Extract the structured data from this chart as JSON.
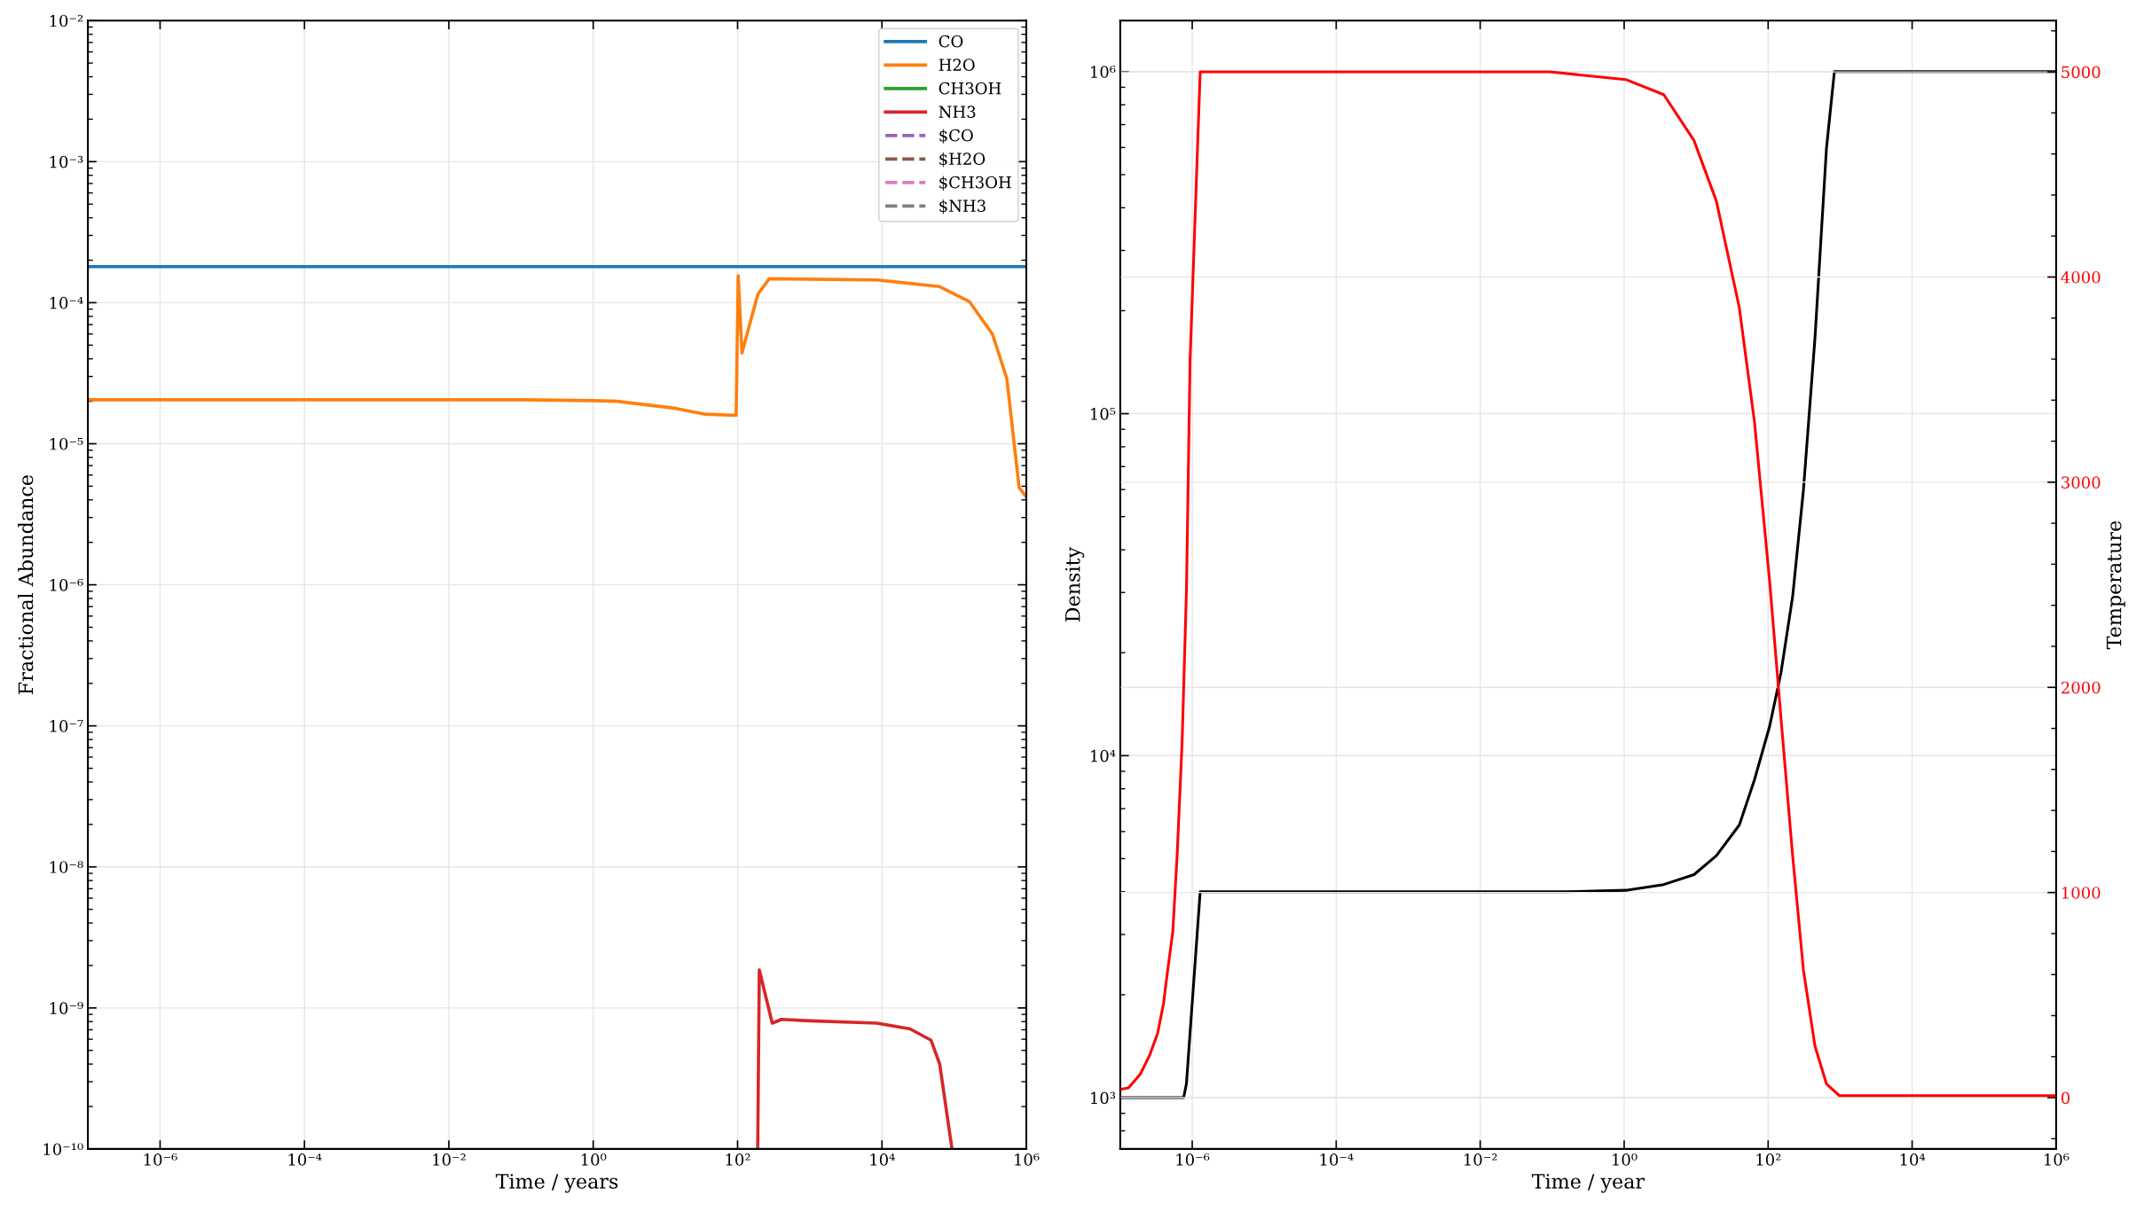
{
  "chart_data": [
    {
      "type": "line",
      "xlabel": "Time / years",
      "ylabel": "Fractional Abundance",
      "log": "xy",
      "grid": true,
      "legend": "top right",
      "line_style": "solid",
      "marker": "none",
      "xlim": [
        1e-07,
        1000000
      ],
      "ylim": [
        1e-10,
        0.01
      ],
      "xticks": [
        {
          "value": 1e-06,
          "label": "10⁻⁶"
        },
        {
          "value": 0.0001,
          "label": "10⁻⁴"
        },
        {
          "value": 0.01,
          "label": "10⁻²"
        },
        {
          "value": 1,
          "label": "10⁰"
        },
        {
          "value": 100,
          "label": "10²"
        },
        {
          "value": 10000,
          "label": "10⁴"
        },
        {
          "value": 1000000,
          "label": "10⁶"
        }
      ],
      "yticks": [
        {
          "value": 1e-10,
          "label": "10⁻¹⁰"
        },
        {
          "value": 1e-09,
          "label": "10⁻⁹"
        },
        {
          "value": 1e-08,
          "label": "10⁻⁸"
        },
        {
          "value": 1e-07,
          "label": "10⁻⁷"
        },
        {
          "value": 1e-06,
          "label": "10⁻⁶"
        },
        {
          "value": 1e-05,
          "label": "10⁻⁵"
        },
        {
          "value": 0.0001,
          "label": "10⁻⁴"
        },
        {
          "value": 0.001,
          "label": "10⁻³"
        },
        {
          "value": 0.01,
          "label": "10⁻²"
        }
      ],
      "series": [
        {
          "name": "CO",
          "color": "#1f77b4",
          "x": [
            1e-07,
            1000000
          ],
          "values": [
            0.00018,
            0.00018
          ]
        },
        {
          "name": "H2O",
          "color": "#ff7f0e",
          "x": [
            1e-07,
            0.1,
            1,
            2.14,
            14.1,
            35.5,
            95.5,
            102,
            115,
            191,
            275,
            8510,
            63100,
            162000,
            339000,
            537000,
            794000,
            1000000
          ],
          "values": [
            2.05e-05,
            2.05e-05,
            2.02e-05,
            2e-05,
            1.78e-05,
            1.62e-05,
            1.59e-05,
            0.000155,
            4.4e-05,
            0.000115,
            0.000148,
            0.000145,
            0.00013,
            0.000102,
            6e-05,
            2.9e-05,
            4.9e-06,
            4.2e-06
          ]
        },
        {
          "name": "CH3OH",
          "color": "#2ca02c"
        },
        {
          "name": "NH3",
          "color": "#d62728",
          "x": [
            190,
            200,
            302,
            407,
            1020,
            8510,
            24500,
            47900,
            63100,
            93300
          ],
          "values": [
            1e-10,
            1.86e-09,
            7.8e-10,
            8.3e-10,
            8.1e-10,
            7.8e-10,
            7.1e-10,
            5.9e-10,
            4e-10,
            1e-10
          ]
        },
        {
          "name": "$CO",
          "color": "#9467bd",
          "line_style": "dashed"
        },
        {
          "name": "$H2O",
          "color": "#8c564b",
          "line_style": "dashed"
        },
        {
          "name": "$CH3OH",
          "color": "#e377c2",
          "line_style": "dashed"
        },
        {
          "name": "$NH3",
          "color": "#7f7f7f",
          "line_style": "dashed"
        }
      ]
    },
    {
      "type": "line",
      "xlabel": "Time / year",
      "ylabel": "Density",
      "y2label": "Temperature",
      "log": "xy",
      "grid": true,
      "legend": false,
      "line_style": "solid",
      "marker": "none",
      "xlim": [
        1e-07,
        1000000
      ],
      "ylim": [
        708,
        1410000
      ],
      "y2lim": [
        -250,
        5250
      ],
      "xticks": [
        {
          "value": 1e-06,
          "label": "10⁻⁶"
        },
        {
          "value": 0.0001,
          "label": "10⁻⁴"
        },
        {
          "value": 0.01,
          "label": "10⁻²"
        },
        {
          "value": 1,
          "label": "10⁰"
        },
        {
          "value": 100,
          "label": "10²"
        },
        {
          "value": 10000,
          "label": "10⁴"
        },
        {
          "value": 1000000,
          "label": "10⁶"
        }
      ],
      "yticks": [
        {
          "value": 1000,
          "label": "10³"
        },
        {
          "value": 10000,
          "label": "10⁴"
        },
        {
          "value": 100000,
          "label": "10⁵"
        },
        {
          "value": 1000000,
          "label": "10⁶"
        }
      ],
      "y2ticks": [
        0,
        1000,
        2000,
        3000,
        4000,
        5000
      ],
      "series": [
        {
          "color": "#000000",
          "axis": "y",
          "x": [
            1e-07,
            7.6e-07,
            8.3e-07,
            1.29e-06,
            1.5e-06,
            0.15,
            1.05,
            3.55,
            9.33,
            19.1,
            39.8,
            64.6,
            105,
            151,
            219,
            309,
            447,
            646,
            832,
            1000000
          ],
          "values": [
            1000,
            1000,
            1097,
            4000,
            4000,
            4000,
            4040,
            4200,
            4490,
            5100,
            6270,
            8500,
            12200,
            17500,
            29200,
            59700,
            166000,
            597000,
            1000000,
            1000000
          ]
        },
        {
          "color": "#ff0000",
          "axis": "y2",
          "x": [
            1e-07,
            1.3e-07,
            1.9e-07,
            2.57e-07,
            3.31e-07,
            3.98e-07,
            4.57e-07,
            5.37e-07,
            6.17e-07,
            7.24e-07,
            8.32e-07,
            9.33e-07,
            1.29e-06,
            0.093,
            1.05,
            3.55,
            9.33,
            19.1,
            39.8,
            64.6,
            105,
            151,
            219,
            309,
            447,
            646,
            977,
            1000000
          ],
          "values": [
            40,
            48,
            115,
            208,
            315,
            456,
            623,
            809,
            1180,
            1736,
            2478,
            3591,
            5000,
            5000,
            4963,
            4889,
            4666,
            4370,
            3850,
            3294,
            2515,
            1847,
            1180,
            623,
            252,
            67,
            10,
            10
          ]
        }
      ]
    }
  ]
}
